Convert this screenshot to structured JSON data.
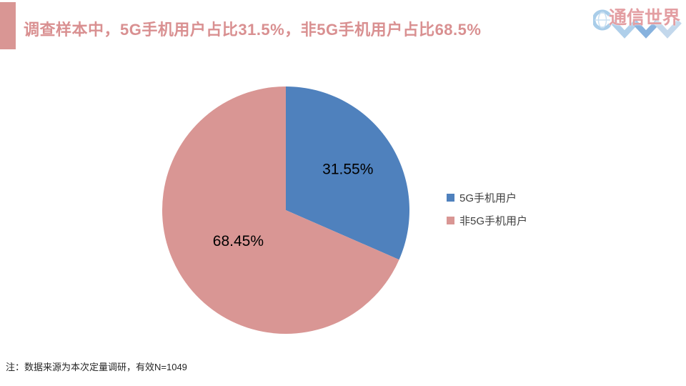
{
  "header": {
    "title": "调查样本中，5G手机用户占比31.5%，非5G手机用户占比68.5%",
    "title_color": "#D99091",
    "accent_color": "#D99694"
  },
  "logo": {
    "text": "通信世界",
    "text_color": "#E39EA2",
    "mark_colors": [
      "#AFCFEA",
      "#87B2DE",
      "#C3D8EC"
    ],
    "ring_color": "#A9CDE9"
  },
  "chart_data": {
    "type": "pie",
    "title": "",
    "categories": [
      "5G手机用户",
      "非5G手机用户"
    ],
    "values": [
      31.55,
      68.45
    ],
    "slices": [
      {
        "label": "5G手机用户",
        "value": 31.55,
        "display": "31.55%",
        "color": "#4F81BD",
        "label_pos_frac": 0.6
      },
      {
        "label": "非5G手机用户",
        "value": 68.45,
        "display": "68.45%",
        "color": "#D99694",
        "label_pos_frac": 0.46
      }
    ],
    "start_angle_deg": 0,
    "direction": "clockwise",
    "legend_position": "right",
    "data_label_color": "#000000"
  },
  "legend": {
    "text_color": "#404040"
  },
  "footnote": "注：数据来源为本次定量调研，有效N=1049"
}
